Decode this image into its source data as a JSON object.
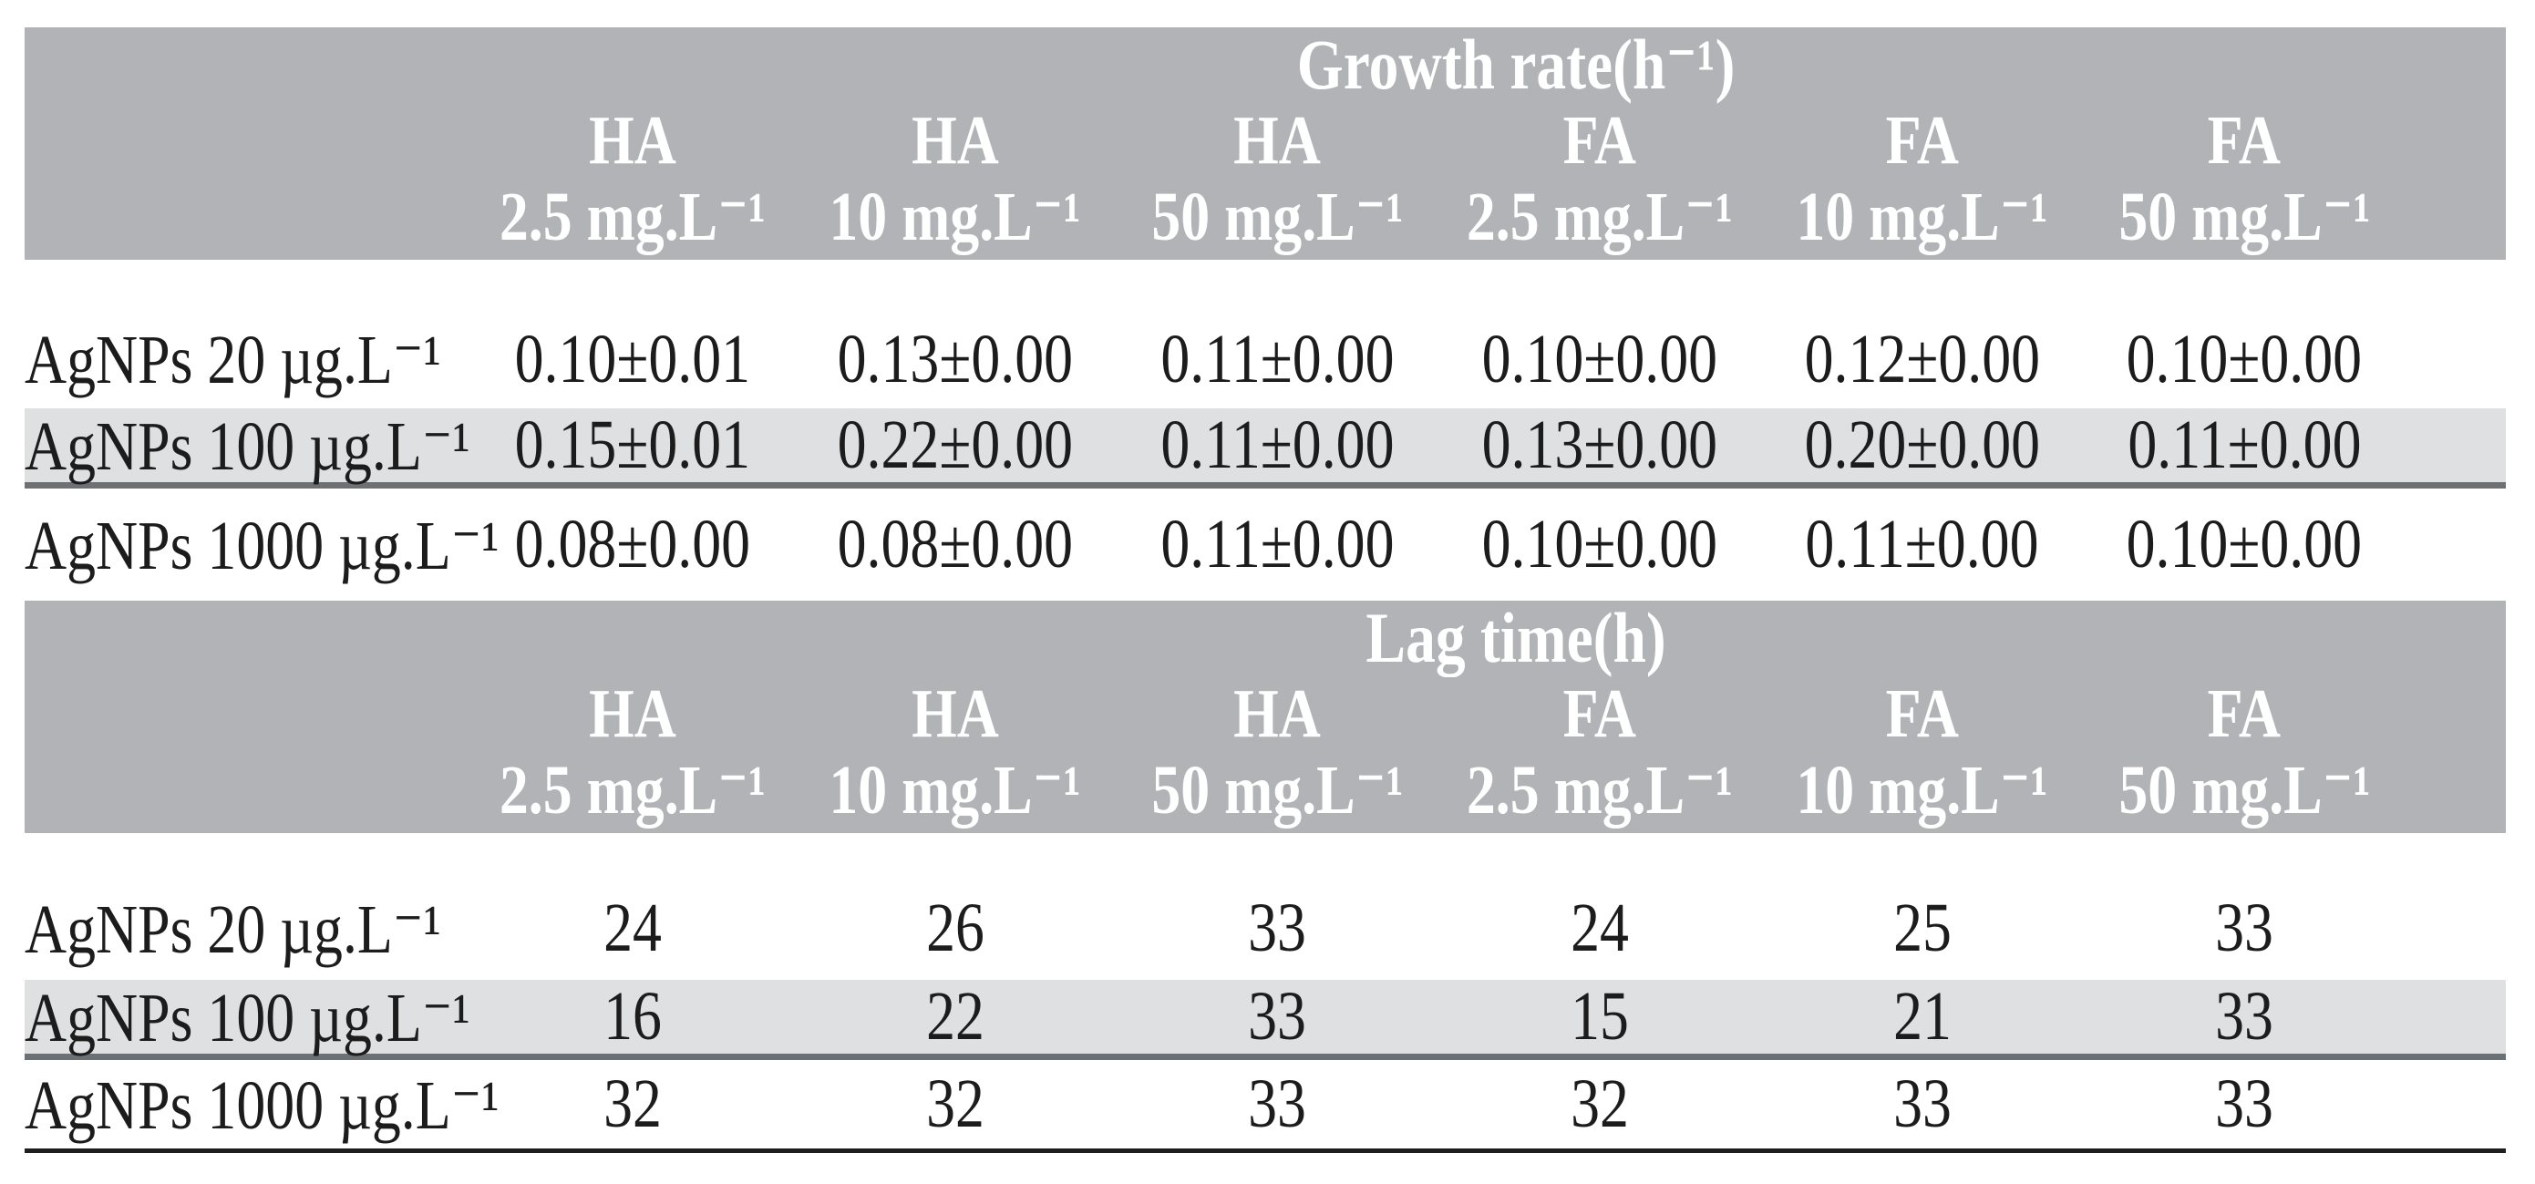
{
  "meta": {
    "kind": "scientific-paper-table",
    "description": "Table of growth rate and lag time under AgNPs exposure with HA/FA organic matter"
  },
  "colors": {
    "header_band": "#b1b3b7",
    "header_text": "#ffffff",
    "shaded_row": "#dfe0e2",
    "row_separator": "#6e7173",
    "bottom_rule": "#1e1e1e",
    "body_text": "#1c1c1c",
    "background": "#ffffff"
  },
  "table": {
    "sections": [
      {
        "title": "Growth rate(h⁻¹)",
        "columns": [
          {
            "group": "HA",
            "unit": "2.5 mg.L⁻¹"
          },
          {
            "group": "HA",
            "unit": "10 mg.L⁻¹"
          },
          {
            "group": "HA",
            "unit": "50 mg.L⁻¹"
          },
          {
            "group": "FA",
            "unit": "2.5 mg.L⁻¹"
          },
          {
            "group": "FA",
            "unit": "10 mg.L⁻¹"
          },
          {
            "group": "FA",
            "unit": "50 mg.L⁻¹"
          }
        ],
        "rows": [
          {
            "label": "AgNPs 20 µg.L⁻¹",
            "values": [
              "0.10±0.01",
              "0.13±0.00",
              "0.11±0.00",
              "0.10±0.00",
              "0.12±0.00",
              "0.10±0.00"
            ]
          },
          {
            "label": "AgNPs 100 µg.L⁻¹",
            "values": [
              "0.15±0.01",
              "0.22±0.00",
              "0.11±0.00",
              "0.13±0.00",
              "0.20±0.00",
              "0.11±0.00"
            ]
          },
          {
            "label": "AgNPs 1000 µg.L⁻¹",
            "values": [
              "0.08±0.00",
              "0.08±0.00",
              "0.11±0.00",
              "0.10±0.00",
              "0.11±0.00",
              "0.10±0.00"
            ]
          }
        ]
      },
      {
        "title": "Lag time(h)",
        "columns": [
          {
            "group": "HA",
            "unit": "2.5 mg.L⁻¹"
          },
          {
            "group": "HA",
            "unit": "10 mg.L⁻¹"
          },
          {
            "group": "HA",
            "unit": "50 mg.L⁻¹"
          },
          {
            "group": "FA",
            "unit": "2.5 mg.L⁻¹"
          },
          {
            "group": "FA",
            "unit": "10 mg.L⁻¹"
          },
          {
            "group": "FA",
            "unit": "50 mg.L⁻¹"
          }
        ],
        "rows": [
          {
            "label": "AgNPs 20 µg.L⁻¹",
            "values": [
              "24",
              "26",
              "33",
              "24",
              "25",
              "33"
            ]
          },
          {
            "label": "AgNPs 100 µg.L⁻¹",
            "values": [
              "16",
              "22",
              "33",
              "15",
              "21",
              "33"
            ]
          },
          {
            "label": "AgNPs 1000 µg.L⁻¹",
            "values": [
              "32",
              "32",
              "33",
              "32",
              "33",
              "33"
            ]
          }
        ]
      }
    ]
  },
  "chart_data": [
    {
      "type": "table",
      "title": "Growth rate(h⁻¹)",
      "columns": [
        "HA 2.5 mg.L⁻¹",
        "HA 10 mg.L⁻¹",
        "HA 50 mg.L⁻¹",
        "FA 2.5 mg.L⁻¹",
        "FA 10 mg.L⁻¹",
        "FA 50 mg.L⁻¹"
      ],
      "row_labels": [
        "AgNPs 20 µg.L⁻¹",
        "AgNPs 100 µg.L⁻¹",
        "AgNPs 1000 µg.L⁻¹"
      ],
      "values": [
        [
          "0.10±0.01",
          "0.13±0.00",
          "0.11±0.00",
          "0.10±0.00",
          "0.12±0.00",
          "0.10±0.00"
        ],
        [
          "0.15±0.01",
          "0.22±0.00",
          "0.11±0.00",
          "0.13±0.00",
          "0.20±0.00",
          "0.11±0.00"
        ],
        [
          "0.08±0.00",
          "0.08±0.00",
          "0.11±0.00",
          "0.10±0.00",
          "0.11±0.00",
          "0.10±0.00"
        ]
      ]
    },
    {
      "type": "table",
      "title": "Lag time(h)",
      "columns": [
        "HA 2.5 mg.L⁻¹",
        "HA 10 mg.L⁻¹",
        "HA 50 mg.L⁻¹",
        "FA 2.5 mg.L⁻¹",
        "FA 10 mg.L⁻¹",
        "FA 50 mg.L⁻¹"
      ],
      "row_labels": [
        "AgNPs 20 µg.L⁻¹",
        "AgNPs 100 µg.L⁻¹",
        "AgNPs 1000 µg.L⁻¹"
      ],
      "values": [
        [
          24,
          26,
          33,
          24,
          25,
          33
        ],
        [
          16,
          22,
          33,
          15,
          21,
          33
        ],
        [
          32,
          32,
          33,
          32,
          33,
          33
        ]
      ]
    }
  ]
}
